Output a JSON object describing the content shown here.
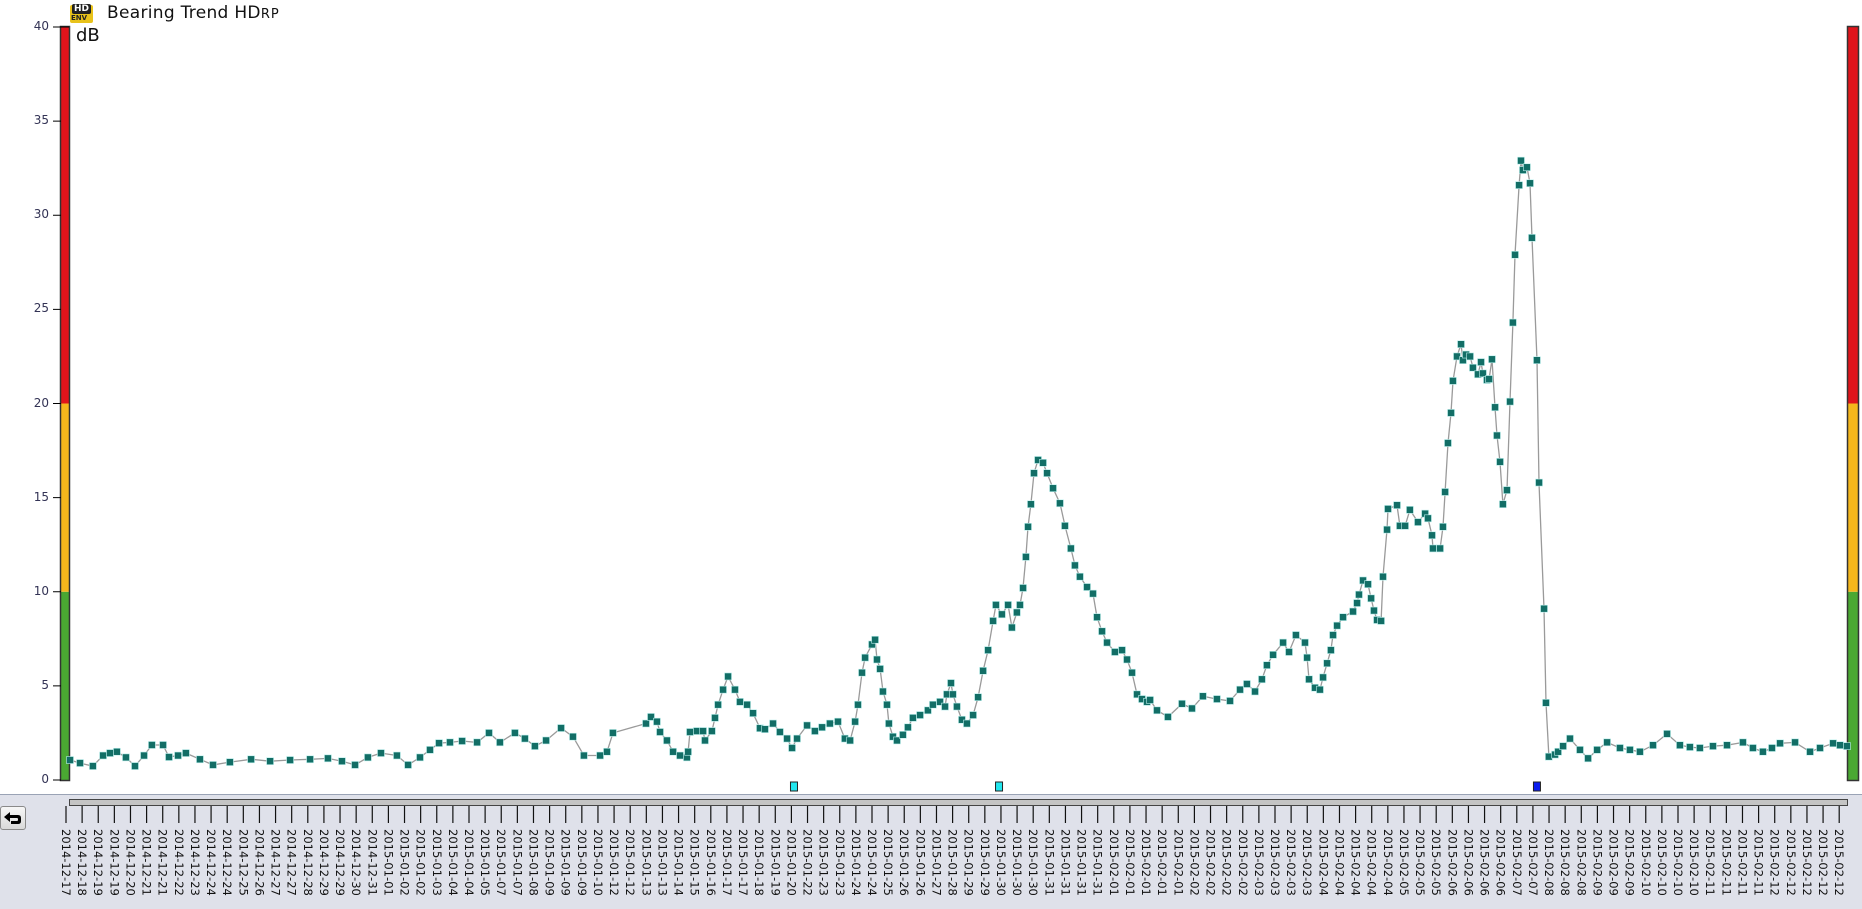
{
  "header": {
    "logo_text_top": "HD",
    "logo_text_bottom": "ENV",
    "title": "Bearing Trend HD",
    "title_subscript": "RP",
    "unit": "dB"
  },
  "chart_data": {
    "type": "line",
    "title": "Bearing Trend HDRP",
    "ylabel": "dB",
    "ylim": [
      0,
      40
    ],
    "yticks": [
      0,
      5,
      10,
      15,
      20,
      25,
      30,
      35,
      40
    ],
    "grid": false,
    "marker": "square",
    "colors": {
      "marker": "#126e66",
      "line": "#9a9a9a",
      "alarm_red": "#e0141b",
      "alarm_yellow": "#f5b71c",
      "alarm_green": "#4aa832"
    },
    "alarm_bands": [
      {
        "from": 0,
        "to": 10,
        "color": "#4aa832"
      },
      {
        "from": 10,
        "to": 20,
        "color": "#f5b71c"
      },
      {
        "from": 20,
        "to": 40,
        "color": "#e0141b"
      }
    ],
    "xtick_labels": [
      "2014-12-17",
      "2014-12-18",
      "2014-12-19",
      "2014-12-19",
      "2014-12-20",
      "2014-12-21",
      "2014-12-21",
      "2014-12-22",
      "2014-12-23",
      "2014-12-24",
      "2014-12-24",
      "2014-12-25",
      "2014-12-26",
      "2014-12-27",
      "2014-12-27",
      "2014-12-28",
      "2014-12-29",
      "2014-12-29",
      "2014-12-30",
      "2014-12-31",
      "2015-01-01",
      "2015-01-02",
      "2015-01-02",
      "2015-01-03",
      "2015-01-04",
      "2015-01-04",
      "2015-01-05",
      "2015-01-07",
      "2015-01-07",
      "2015-01-08",
      "2015-01-09",
      "2015-01-09",
      "2015-01-09",
      "2015-01-10",
      "2015-01-12",
      "2015-01-12",
      "2015-01-13",
      "2015-01-13",
      "2015-01-14",
      "2015-01-15",
      "2015-01-16",
      "2015-01-17",
      "2015-01-17",
      "2015-01-18",
      "2015-01-19",
      "2015-01-20",
      "2015-01-22",
      "2015-01-23",
      "2015-01-23",
      "2015-01-24",
      "2015-01-24",
      "2015-01-25",
      "2015-01-26",
      "2015-01-26",
      "2015-01-27",
      "2015-01-28",
      "2015-01-29",
      "2015-01-29",
      "2015-01-30",
      "2015-01-30",
      "2015-01-30",
      "2015-01-31",
      "2015-01-31",
      "2015-01-31",
      "2015-01-31",
      "2015-02-01",
      "2015-02-01",
      "2015-02-01",
      "2015-02-01",
      "2015-02-01",
      "2015-02-02",
      "2015-02-02",
      "2015-02-02",
      "2015-02-02",
      "2015-02-03",
      "2015-02-03",
      "2015-02-03",
      "2015-02-03",
      "2015-02-04",
      "2015-02-04",
      "2015-02-04",
      "2015-02-04",
      "2015-02-04",
      "2015-02-05",
      "2015-02-05",
      "2015-02-05",
      "2015-02-06",
      "2015-02-06",
      "2015-02-06",
      "2015-02-06",
      "2015-02-07",
      "2015-02-07",
      "2015-02-08",
      "2015-02-08",
      "2015-02-08",
      "2015-02-09",
      "2015-02-09",
      "2015-02-09",
      "2015-02-10",
      "2015-02-10",
      "2015-02-10",
      "2015-02-10",
      "2015-02-11",
      "2015-02-11",
      "2015-02-11",
      "2015-02-11",
      "2015-02-12",
      "2015-02-12",
      "2015-02-12",
      "2015-02-12",
      "2015-02-12"
    ],
    "series": [
      {
        "points": [
          [
            0.25,
            1.06
          ],
          [
            0.87,
            0.9
          ],
          [
            1.67,
            0.74
          ],
          [
            2.3,
            1.3
          ],
          [
            2.73,
            1.43
          ],
          [
            3.16,
            1.5
          ],
          [
            3.72,
            1.2
          ],
          [
            4.28,
            0.74
          ],
          [
            4.84,
            1.3
          ],
          [
            5.33,
            1.86
          ],
          [
            6.02,
            1.86
          ],
          [
            6.39,
            1.22
          ],
          [
            6.95,
            1.3
          ],
          [
            7.44,
            1.43
          ],
          [
            8.31,
            1.1
          ],
          [
            9.12,
            0.8
          ],
          [
            10.17,
            0.95
          ],
          [
            11.48,
            1.1
          ],
          [
            12.66,
            1.0
          ],
          [
            13.9,
            1.06
          ],
          [
            15.14,
            1.1
          ],
          [
            16.25,
            1.15
          ],
          [
            17.12,
            1.0
          ],
          [
            17.93,
            0.8
          ],
          [
            18.73,
            1.2
          ],
          [
            19.54,
            1.43
          ],
          [
            20.53,
            1.3
          ],
          [
            21.22,
            0.8
          ],
          [
            21.96,
            1.2
          ],
          [
            22.58,
            1.6
          ],
          [
            23.14,
            1.96
          ],
          [
            23.82,
            2.0
          ],
          [
            24.57,
            2.07
          ],
          [
            25.5,
            2.0
          ],
          [
            26.24,
            2.5
          ],
          [
            26.92,
            2.0
          ],
          [
            27.85,
            2.5
          ],
          [
            28.47,
            2.2
          ],
          [
            29.09,
            1.8
          ],
          [
            29.78,
            2.1
          ],
          [
            30.71,
            2.76
          ],
          [
            31.45,
            2.3
          ],
          [
            32.13,
            1.3
          ],
          [
            33.13,
            1.3
          ],
          [
            33.56,
            1.5
          ],
          [
            33.93,
            2.5
          ],
          [
            35.98,
            3.0
          ],
          [
            36.29,
            3.35
          ],
          [
            36.66,
            3.1
          ],
          [
            36.85,
            2.55
          ],
          [
            37.28,
            2.1
          ],
          [
            37.66,
            1.5
          ],
          [
            38.09,
            1.3
          ],
          [
            38.52,
            1.2
          ],
          [
            38.59,
            1.5
          ],
          [
            38.71,
            2.55
          ],
          [
            39.14,
            2.6
          ],
          [
            39.52,
            2.6
          ],
          [
            39.64,
            2.1
          ],
          [
            40.07,
            2.6
          ],
          [
            40.26,
            3.3
          ],
          [
            40.45,
            4.0
          ],
          [
            40.76,
            4.8
          ],
          [
            41.07,
            5.5
          ],
          [
            41.5,
            4.8
          ],
          [
            41.81,
            4.15
          ],
          [
            42.25,
            4.0
          ],
          [
            42.62,
            3.55
          ],
          [
            43.05,
            2.75
          ],
          [
            43.36,
            2.7
          ],
          [
            43.86,
            3.0
          ],
          [
            44.29,
            2.55
          ],
          [
            44.73,
            2.2
          ],
          [
            45.04,
            1.7
          ],
          [
            45.35,
            2.2
          ],
          [
            45.97,
            2.9
          ],
          [
            46.46,
            2.6
          ],
          [
            46.9,
            2.8
          ],
          [
            47.39,
            3.0
          ],
          [
            47.89,
            3.1
          ],
          [
            48.32,
            2.2
          ],
          [
            48.64,
            2.1
          ],
          [
            48.95,
            3.1
          ],
          [
            49.13,
            4.0
          ],
          [
            49.38,
            5.7
          ],
          [
            49.57,
            6.5
          ],
          [
            50.0,
            7.2
          ],
          [
            50.19,
            7.45
          ],
          [
            50.31,
            6.4
          ],
          [
            50.5,
            5.9
          ],
          [
            50.68,
            4.7
          ],
          [
            50.93,
            4.0
          ],
          [
            51.05,
            3.0
          ],
          [
            51.3,
            2.3
          ],
          [
            51.55,
            2.1
          ],
          [
            51.92,
            2.4
          ],
          [
            52.23,
            2.8
          ],
          [
            52.54,
            3.3
          ],
          [
            52.98,
            3.45
          ],
          [
            53.47,
            3.7
          ],
          [
            53.78,
            4.0
          ],
          [
            54.22,
            4.15
          ],
          [
            54.53,
            3.9
          ],
          [
            54.65,
            4.55
          ],
          [
            54.9,
            5.15
          ],
          [
            55.02,
            4.55
          ],
          [
            55.27,
            3.9
          ],
          [
            55.58,
            3.2
          ],
          [
            55.89,
            3.0
          ],
          [
            56.27,
            3.45
          ],
          [
            56.58,
            4.4
          ],
          [
            56.89,
            5.8
          ],
          [
            57.2,
            6.9
          ],
          [
            57.51,
            8.45
          ],
          [
            57.69,
            9.3
          ],
          [
            58.06,
            8.8
          ],
          [
            58.44,
            9.3
          ],
          [
            58.68,
            8.1
          ],
          [
            58.99,
            8.9
          ],
          [
            59.18,
            9.3
          ],
          [
            59.37,
            10.2
          ],
          [
            59.55,
            11.85
          ],
          [
            59.68,
            13.45
          ],
          [
            59.86,
            14.65
          ],
          [
            60.05,
            16.3
          ],
          [
            60.3,
            17.0
          ],
          [
            60.61,
            16.85
          ],
          [
            60.86,
            16.3
          ],
          [
            61.23,
            15.5
          ],
          [
            61.66,
            14.7
          ],
          [
            61.97,
            13.5
          ],
          [
            62.34,
            12.3
          ],
          [
            62.59,
            11.4
          ],
          [
            62.9,
            10.8
          ],
          [
            63.34,
            10.25
          ],
          [
            63.71,
            9.9
          ],
          [
            63.96,
            8.65
          ],
          [
            64.27,
            7.9
          ],
          [
            64.58,
            7.3
          ],
          [
            65.07,
            6.8
          ],
          [
            65.51,
            6.9
          ],
          [
            65.82,
            6.4
          ],
          [
            66.13,
            5.7
          ],
          [
            66.44,
            4.55
          ],
          [
            66.75,
            4.3
          ],
          [
            67.06,
            4.15
          ],
          [
            67.25,
            4.25
          ],
          [
            67.68,
            3.7
          ],
          [
            68.36,
            3.35
          ],
          [
            69.23,
            4.05
          ],
          [
            69.85,
            3.8
          ],
          [
            70.53,
            4.45
          ],
          [
            71.4,
            4.3
          ],
          [
            72.21,
            4.2
          ],
          [
            72.83,
            4.8
          ],
          [
            73.26,
            5.1
          ],
          [
            73.76,
            4.7
          ],
          [
            74.19,
            5.35
          ],
          [
            74.5,
            6.1
          ],
          [
            74.88,
            6.65
          ],
          [
            75.5,
            7.3
          ],
          [
            75.87,
            6.8
          ],
          [
            76.3,
            7.7
          ],
          [
            76.86,
            7.3
          ],
          [
            76.99,
            6.5
          ],
          [
            77.11,
            5.35
          ],
          [
            77.48,
            4.9
          ],
          [
            77.79,
            4.8
          ],
          [
            77.98,
            5.45
          ],
          [
            78.23,
            6.2
          ],
          [
            78.47,
            6.9
          ],
          [
            78.6,
            7.7
          ],
          [
            78.85,
            8.2
          ],
          [
            79.22,
            8.65
          ],
          [
            79.84,
            8.95
          ],
          [
            80.09,
            9.4
          ],
          [
            80.21,
            9.85
          ],
          [
            80.46,
            10.6
          ],
          [
            80.77,
            10.4
          ],
          [
            80.96,
            9.65
          ],
          [
            81.14,
            9.0
          ],
          [
            81.33,
            8.5
          ],
          [
            81.58,
            8.45
          ],
          [
            81.7,
            10.8
          ],
          [
            81.95,
            13.3
          ],
          [
            82.01,
            14.4
          ],
          [
            82.57,
            14.6
          ],
          [
            82.75,
            13.5
          ],
          [
            83.07,
            13.5
          ],
          [
            83.37,
            14.35
          ],
          [
            83.87,
            13.7
          ],
          [
            84.31,
            14.15
          ],
          [
            84.49,
            13.9
          ],
          [
            84.74,
            13.0
          ],
          [
            84.8,
            12.3
          ],
          [
            85.24,
            12.3
          ],
          [
            85.42,
            13.45
          ],
          [
            85.55,
            15.3
          ],
          [
            85.73,
            17.9
          ],
          [
            85.92,
            19.5
          ],
          [
            86.04,
            21.2
          ],
          [
            86.29,
            22.5
          ],
          [
            86.54,
            23.15
          ],
          [
            86.66,
            22.3
          ],
          [
            86.85,
            22.6
          ],
          [
            87.1,
            22.5
          ],
          [
            87.28,
            21.9
          ],
          [
            87.59,
            21.55
          ],
          [
            87.78,
            22.2
          ],
          [
            87.9,
            21.6
          ],
          [
            88.15,
            21.25
          ],
          [
            88.28,
            21.3
          ],
          [
            88.46,
            22.35
          ],
          [
            88.65,
            19.8
          ],
          [
            88.77,
            18.3
          ],
          [
            88.96,
            16.9
          ],
          [
            89.14,
            14.65
          ],
          [
            89.39,
            15.4
          ],
          [
            89.58,
            20.1
          ],
          [
            89.76,
            24.3
          ],
          [
            89.89,
            27.9
          ],
          [
            90.14,
            31.6
          ],
          [
            90.26,
            32.9
          ],
          [
            90.38,
            32.4
          ],
          [
            90.63,
            32.55
          ],
          [
            90.82,
            31.7
          ],
          [
            90.94,
            28.8
          ],
          [
            91.25,
            22.3
          ],
          [
            91.38,
            15.8
          ],
          [
            91.69,
            9.1
          ],
          [
            91.81,
            4.1
          ],
          [
            91.99,
            1.24
          ],
          [
            92.37,
            1.35
          ],
          [
            92.56,
            1.5
          ],
          [
            92.87,
            1.8
          ],
          [
            93.3,
            2.2
          ],
          [
            93.92,
            1.6
          ],
          [
            94.42,
            1.15
          ],
          [
            94.98,
            1.6
          ],
          [
            95.6,
            2.0
          ],
          [
            96.4,
            1.7
          ],
          [
            97.02,
            1.6
          ],
          [
            97.64,
            1.5
          ],
          [
            98.45,
            1.85
          ],
          [
            99.32,
            2.45
          ],
          [
            100.12,
            1.85
          ],
          [
            100.74,
            1.75
          ],
          [
            101.36,
            1.7
          ],
          [
            102.17,
            1.8
          ],
          [
            103.04,
            1.85
          ],
          [
            104.03,
            2.0
          ],
          [
            104.65,
            1.7
          ],
          [
            105.27,
            1.5
          ],
          [
            105.83,
            1.7
          ],
          [
            106.33,
            1.95
          ],
          [
            107.26,
            2.0
          ],
          [
            108.19,
            1.5
          ],
          [
            108.81,
            1.7
          ],
          [
            109.62,
            1.95
          ],
          [
            110.05,
            1.85
          ],
          [
            110.48,
            1.8
          ]
        ]
      }
    ],
    "event_markers": [
      {
        "x": 45.16,
        "color": "#22e6ee"
      },
      {
        "x": 57.88,
        "color": "#22e6ee"
      },
      {
        "x": 91.25,
        "color": "#0a1cf0"
      }
    ]
  },
  "controls": {
    "back_icon": "return-arrow-icon"
  }
}
